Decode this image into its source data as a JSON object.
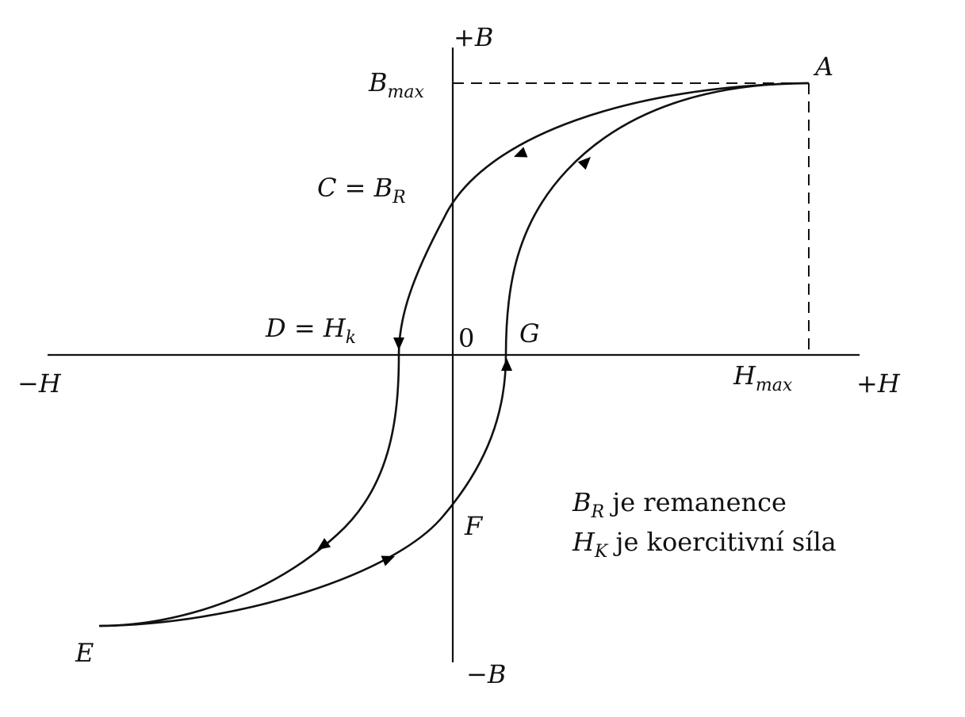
{
  "labels": {
    "plus_b": {
      "sign": "+",
      "sym": "B"
    },
    "minus_b": {
      "sign": "−",
      "sym": "B"
    },
    "plus_h": {
      "sign": "+",
      "sym": "H"
    },
    "minus_h": {
      "sign": "−",
      "sym": "H"
    },
    "b_max": {
      "sym": "B",
      "sub": "max"
    },
    "h_max": {
      "sym": "H",
      "sub": "max"
    },
    "a": "A",
    "c": {
      "sym": "C",
      "eq": " = ",
      "sym2": "B",
      "sub": "R"
    },
    "d": {
      "sym": "D",
      "eq": " = ",
      "sym2": "H",
      "sub": "k"
    },
    "origin": "0",
    "g": "G",
    "f": "F",
    "e": "E"
  },
  "legend": [
    {
      "sym": "B",
      "sub": "R",
      "text": " je remanence"
    },
    {
      "sym": "H",
      "sub": "K",
      "text": " je koercitivní síla"
    }
  ]
}
